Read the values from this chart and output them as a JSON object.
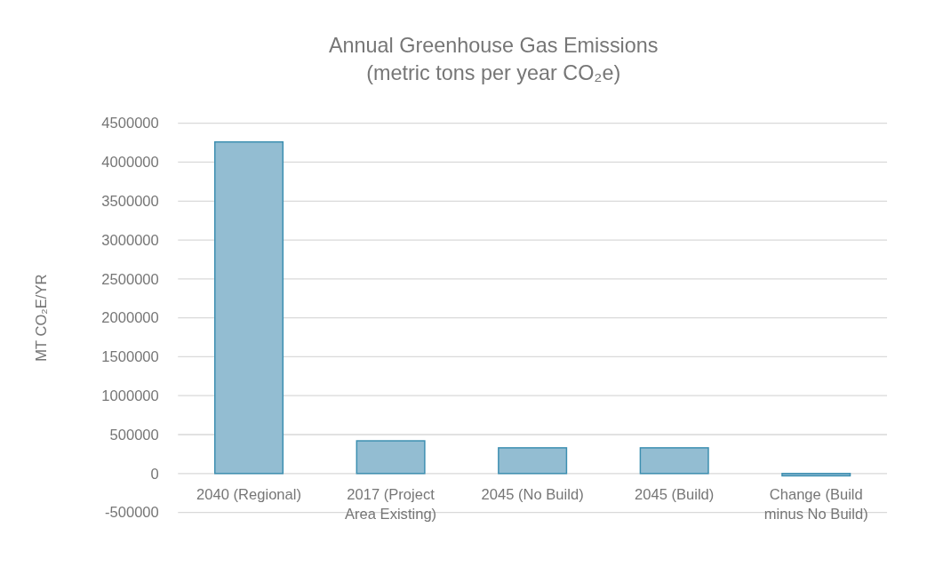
{
  "chart_data": {
    "type": "bar",
    "title": "Annual Greenhouse Gas Emissions",
    "subtitle": "(metric tons per year CO₂e)",
    "ylabel": "MT CO₂E/YR",
    "categories": [
      "2040 (Regional)",
      "2017 (Project Area Existing)",
      "2045 (No Build)",
      "2045 (Build)",
      "Change (Build minus No Build)"
    ],
    "values": [
      4260000,
      420000,
      330000,
      330000,
      -30000
    ],
    "color": "#93bdd2",
    "ylim": [
      -500000,
      4500000
    ],
    "yticks": [
      -500000,
      0,
      500000,
      1000000,
      1500000,
      2000000,
      2500000,
      3000000,
      3500000,
      4000000,
      4500000
    ],
    "grid": "y"
  }
}
